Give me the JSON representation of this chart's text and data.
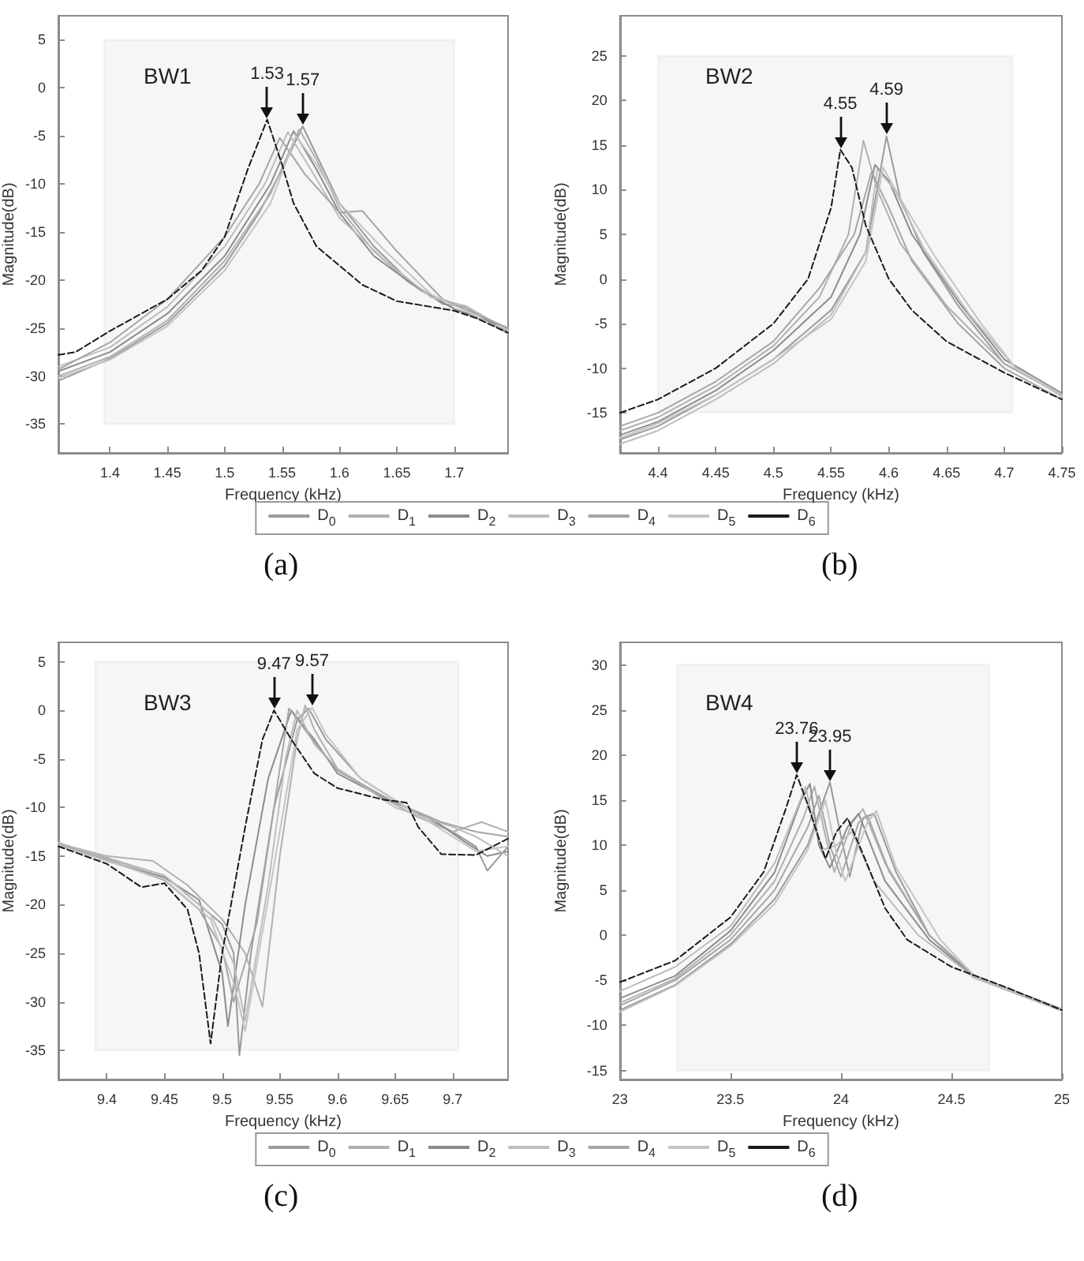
{
  "chart_data": [
    {
      "type": "line",
      "title": "BW1",
      "xlabel": "Frequency (kHz)",
      "ylabel": "Magnitude(dB)",
      "xlim": [
        1.355,
        1.747
      ],
      "ylim": [
        -38,
        7.5
      ],
      "xticks": [
        1.4,
        1.45,
        1.5,
        1.55,
        1.6,
        1.65,
        1.7
      ],
      "yticks": [
        -35,
        -30,
        -25,
        -20,
        -15,
        -10,
        -5,
        0,
        5
      ],
      "grid": false,
      "legend": "bottom",
      "marker": "none",
      "line_style": "solid",
      "bands": [
        {
          "axis": "x",
          "from": 1.395,
          "to": 1.7,
          "color": "#8c8c8c"
        }
      ],
      "annotations": [
        {
          "text": "1.53",
          "x": 1.537,
          "y": -3.3
        },
        {
          "text": "1.57",
          "x": 1.568,
          "y": -4
        },
        "(a)"
      ],
      "series": [
        {
          "name": "D$_{0}$",
          "color": "#9a9a9a",
          "x": [
            1.355,
            1.4,
            1.45,
            1.5,
            1.53,
            1.55,
            1.568,
            1.58,
            1.6,
            1.63,
            1.66,
            1.69,
            1.71,
            1.747
          ],
          "values": [
            -30.5,
            -28.2,
            -24.5,
            -18.5,
            -13,
            -8.5,
            -4,
            -7,
            -12,
            -16.5,
            -20,
            -22.5,
            -22.8,
            -25.5
          ]
        },
        {
          "name": "D$_{1}$",
          "color": "#b0b0b0",
          "x": [
            1.355,
            1.4,
            1.45,
            1.5,
            1.54,
            1.565,
            1.58,
            1.6,
            1.63,
            1.66,
            1.7,
            1.747
          ],
          "values": [
            -30,
            -28,
            -24.2,
            -18,
            -11,
            -4.3,
            -7.5,
            -12.5,
            -17,
            -20.2,
            -23,
            -25.3
          ]
        },
        {
          "name": "D$_{2}$",
          "color": "#8c8c8c",
          "x": [
            1.355,
            1.4,
            1.45,
            1.5,
            1.54,
            1.56,
            1.58,
            1.6,
            1.63,
            1.67,
            1.7,
            1.747
          ],
          "values": [
            -29.5,
            -27.5,
            -23.5,
            -17.5,
            -10,
            -4.5,
            -8.5,
            -13,
            -17.5,
            -21,
            -23,
            -25
          ]
        },
        {
          "name": "D$_{3}$",
          "color": "#bdbdbd",
          "x": [
            1.355,
            1.4,
            1.45,
            1.5,
            1.535,
            1.555,
            1.575,
            1.6,
            1.64,
            1.68,
            1.71,
            1.747
          ],
          "values": [
            -29,
            -27,
            -22.8,
            -16.5,
            -10,
            -4.6,
            -8.5,
            -13.5,
            -18,
            -21.8,
            -22.7,
            -25.2
          ]
        },
        {
          "name": "D$_{4}$",
          "color": "#a6a6a6",
          "x": [
            1.355,
            1.4,
            1.45,
            1.5,
            1.53,
            1.548,
            1.57,
            1.6,
            1.62,
            1.65,
            1.69,
            1.747
          ],
          "values": [
            -29.3,
            -26.5,
            -22,
            -15.5,
            -10,
            -5.2,
            -9,
            -13,
            -12.8,
            -17,
            -22,
            -25
          ]
        },
        {
          "name": "D$_{5}$",
          "color": "#c4c4c4",
          "x": [
            1.355,
            1.4,
            1.45,
            1.5,
            1.54,
            1.562,
            1.58,
            1.6,
            1.64,
            1.68,
            1.72,
            1.747
          ],
          "values": [
            -30.2,
            -28.3,
            -24.8,
            -19,
            -12,
            -5,
            -8,
            -12,
            -17,
            -21.5,
            -23.8,
            -25.6
          ]
        },
        {
          "name": "D$_{6}$",
          "color": "#1a1a1a",
          "line_style": "dashed",
          "x": [
            1.355,
            1.37,
            1.4,
            1.45,
            1.48,
            1.5,
            1.52,
            1.537,
            1.55,
            1.56,
            1.58,
            1.6,
            1.62,
            1.65,
            1.7,
            1.72,
            1.747
          ],
          "values": [
            -27.8,
            -27.5,
            -25.3,
            -22,
            -19,
            -15.5,
            -8.5,
            -3.3,
            -8,
            -12,
            -16.5,
            -18.5,
            -20.5,
            -22.2,
            -23.2,
            -24,
            -25.5
          ]
        }
      ]
    },
    {
      "type": "line",
      "title": "BW2",
      "xlabel": "Frequency (kHz)",
      "ylabel": "Magnitude(dB)",
      "xlim": [
        4.367,
        4.75
      ],
      "ylim": [
        -19.5,
        29.5
      ],
      "xticks": [
        4.4,
        4.45,
        4.5,
        4.55,
        4.6,
        4.65,
        4.7,
        4.75
      ],
      "yticks": [
        -15,
        -10,
        -5,
        0,
        5,
        10,
        15,
        20,
        25
      ],
      "grid": false,
      "marker": "none",
      "line_style": "solid",
      "bands": [
        {
          "axis": "x",
          "from": 4.4,
          "to": 4.707,
          "color": "#8c8c8c"
        }
      ],
      "annotations": [
        {
          "text": "4.55",
          "x": 4.558,
          "y": 14.5
        },
        {
          "text": "4.59",
          "x": 4.598,
          "y": 16
        },
        "(b)"
      ],
      "series": [
        {
          "color": "#9a9a9a",
          "x": [
            4.367,
            4.4,
            4.45,
            4.5,
            4.55,
            4.58,
            4.598,
            4.61,
            4.63,
            4.66,
            4.7,
            4.75
          ],
          "values": [
            -18,
            -16.5,
            -13,
            -9,
            -3.5,
            3,
            16,
            9,
            3,
            -3,
            -9.5,
            -13
          ]
        },
        {
          "color": "#b0b0b0",
          "x": [
            4.367,
            4.4,
            4.45,
            4.5,
            4.54,
            4.565,
            4.578,
            4.59,
            4.61,
            4.65,
            4.7,
            4.75
          ],
          "values": [
            -17,
            -15.5,
            -12,
            -7.5,
            -2,
            5,
            15.5,
            10,
            4,
            -3,
            -9.5,
            -13
          ]
        },
        {
          "color": "#8c8c8c",
          "x": [
            4.367,
            4.4,
            4.45,
            4.5,
            4.55,
            4.575,
            4.588,
            4.6,
            4.62,
            4.66,
            4.7,
            4.75
          ],
          "values": [
            -17.5,
            -16,
            -12.5,
            -8,
            -2,
            5,
            12.8,
            11,
            5,
            -2.5,
            -9,
            -12.8
          ]
        },
        {
          "color": "#bdbdbd",
          "x": [
            4.367,
            4.4,
            4.45,
            4.5,
            4.55,
            4.58,
            4.59,
            4.605,
            4.63,
            4.67,
            4.71,
            4.75
          ],
          "values": [
            -18.5,
            -17,
            -13.5,
            -9.5,
            -4,
            3,
            12.3,
            10,
            3.5,
            -4,
            -10,
            -13.2
          ]
        },
        {
          "color": "#a6a6a6",
          "x": [
            4.367,
            4.4,
            4.45,
            4.5,
            4.54,
            4.57,
            4.585,
            4.6,
            4.62,
            4.66,
            4.7,
            4.75
          ],
          "values": [
            -16.5,
            -15,
            -11.5,
            -7,
            -1,
            5,
            12,
            8,
            2,
            -5,
            -10,
            -13.5
          ]
        },
        {
          "color": "#c4c4c4",
          "x": [
            4.367,
            4.4,
            4.45,
            4.5,
            4.55,
            4.58,
            4.595,
            4.61,
            4.64,
            4.68,
            4.71,
            4.75
          ],
          "values": [
            -17.8,
            -16.2,
            -13,
            -9,
            -4.5,
            2,
            12.5,
            9,
            2.5,
            -5,
            -10,
            -13
          ]
        },
        {
          "color": "#1a1a1a",
          "line_style": "dashed",
          "x": [
            4.367,
            4.4,
            4.45,
            4.5,
            4.53,
            4.55,
            4.558,
            4.568,
            4.58,
            4.6,
            4.62,
            4.65,
            4.7,
            4.75
          ],
          "values": [
            -15,
            -13.5,
            -10,
            -5,
            0,
            8,
            14.5,
            12.5,
            6,
            0,
            -3.5,
            -7,
            -10.5,
            -13.5
          ]
        }
      ]
    },
    {
      "type": "line",
      "title": "BW3",
      "xlabel": "Frequency (kHz)",
      "ylabel": "Magnitude(dB)",
      "xlim": [
        9.358,
        9.748
      ],
      "ylim": [
        -38,
        7
      ],
      "xticks": [
        9.4,
        9.45,
        9.5,
        9.55,
        9.6,
        9.65,
        9.7
      ],
      "yticks": [
        -35,
        -30,
        -25,
        -20,
        -15,
        -10,
        -5,
        0,
        5
      ],
      "grid": false,
      "legend": "bottom",
      "marker": "none",
      "line_style": "solid",
      "bands": [
        {
          "axis": "x",
          "from": 9.39,
          "to": 9.705,
          "color": "#8c8c8c"
        }
      ],
      "annotations": [
        {
          "text": "9.47",
          "x": 9.545,
          "y": 0
        },
        {
          "text": "9.57",
          "x": 9.578,
          "y": 0.3
        },
        "(c)"
      ],
      "series": [
        {
          "name": "D$_{0}$",
          "color": "#9a9a9a",
          "x": [
            9.358,
            9.4,
            9.45,
            9.48,
            9.5,
            9.51,
            9.515,
            9.525,
            9.545,
            9.565,
            9.575,
            9.59,
            9.62,
            9.66,
            9.7,
            9.72,
            9.73,
            9.748
          ],
          "values": [
            -13.8,
            -15.2,
            -17,
            -20,
            -22,
            -25,
            -35.5,
            -25,
            -10,
            -1,
            0.2,
            -3,
            -7,
            -10,
            -12.5,
            -14,
            -16.5,
            -14
          ]
        },
        {
          "name": "D$_{1}$",
          "color": "#b0b0b0",
          "x": [
            9.358,
            9.4,
            9.44,
            9.47,
            9.5,
            9.52,
            9.535,
            9.55,
            9.565,
            9.572,
            9.58,
            9.6,
            9.64,
            9.67,
            9.7,
            9.725,
            9.748
          ],
          "values": [
            -13.7,
            -15,
            -15.5,
            -18,
            -21.5,
            -25,
            -30.5,
            -15,
            -3,
            0.5,
            -2,
            -6,
            -9,
            -11,
            -12.5,
            -11.5,
            -12.5
          ]
        },
        {
          "name": "D$_{2}$",
          "color": "#8c8c8c",
          "x": [
            9.358,
            9.4,
            9.45,
            9.48,
            9.5,
            9.505,
            9.52,
            9.54,
            9.56,
            9.58,
            9.6,
            9.64,
            9.68,
            9.71,
            9.73,
            9.748
          ],
          "values": [
            -13.9,
            -15.5,
            -17.2,
            -19.5,
            -27,
            -32.5,
            -20,
            -7,
            0,
            -3,
            -6.5,
            -9,
            -11,
            -13.5,
            -15,
            -14.5
          ]
        },
        {
          "name": "D$_{3}$",
          "color": "#bdbdbd",
          "x": [
            9.358,
            9.4,
            9.45,
            9.49,
            9.51,
            9.52,
            9.54,
            9.555,
            9.565,
            9.58,
            9.6,
            9.65,
            9.7,
            9.72,
            9.748
          ],
          "values": [
            -13.6,
            -15.3,
            -17,
            -21,
            -26,
            -32,
            -18,
            -5,
            0,
            -3.5,
            -6,
            -10,
            -12,
            -13,
            -15
          ]
        },
        {
          "name": "D$_{4}$",
          "color": "#a6a6a6",
          "x": [
            9.358,
            9.4,
            9.45,
            9.48,
            9.5,
            9.51,
            9.53,
            9.55,
            9.558,
            9.575,
            9.6,
            9.65,
            9.69,
            9.72,
            9.748
          ],
          "values": [
            -13.8,
            -15.4,
            -17.5,
            -20.5,
            -24.5,
            -30,
            -22,
            -6,
            0.2,
            -2.5,
            -6.2,
            -9.5,
            -11.5,
            -12.5,
            -13
          ]
        },
        {
          "name": "D$_{5}$",
          "color": "#c4c4c4",
          "x": [
            9.358,
            9.4,
            9.45,
            9.49,
            9.51,
            9.52,
            9.545,
            9.565,
            9.578,
            9.59,
            9.62,
            9.66,
            9.7,
            9.72,
            9.748
          ],
          "values": [
            -13.9,
            -15.5,
            -17.4,
            -21.5,
            -28,
            -33,
            -16,
            -2,
            0.3,
            -2.5,
            -7,
            -10,
            -13,
            -14.5,
            -14
          ]
        },
        {
          "name": "D$_{6}$",
          "color": "#1a1a1a",
          "line_style": "dashed",
          "x": [
            9.358,
            9.4,
            9.43,
            9.45,
            9.47,
            9.48,
            9.49,
            9.5,
            9.52,
            9.535,
            9.545,
            9.56,
            9.58,
            9.6,
            9.64,
            9.66,
            9.67,
            9.69,
            9.72,
            9.748
          ],
          "values": [
            -14,
            -15.8,
            -18.2,
            -17.8,
            -20.5,
            -25,
            -34.3,
            -25,
            -12,
            -3,
            0,
            -3,
            -6.5,
            -8,
            -9.2,
            -9.5,
            -12,
            -14.8,
            -14.9,
            -13.2
          ]
        }
      ]
    },
    {
      "type": "line",
      "title": "BW4",
      "xlabel": "Frequency (kHz)",
      "ylabel": "Magnitude(dB)",
      "xlim": [
        23,
        25
      ],
      "ylim": [
        -16,
        32.5
      ],
      "xticks": [
        23,
        23.5,
        24,
        24.5,
        25
      ],
      "yticks": [
        -15,
        -10,
        -5,
        0,
        5,
        10,
        15,
        20,
        25,
        30
      ],
      "grid": false,
      "marker": "none",
      "line_style": "solid",
      "bands": [
        {
          "axis": "x",
          "from": 23.26,
          "to": 24.67,
          "color": "#8c8c8c"
        }
      ],
      "annotations": [
        {
          "text": "23.76",
          "x": 23.8,
          "y": 17.8
        },
        {
          "text": "23.95",
          "x": 23.95,
          "y": 17
        },
        "(d)"
      ],
      "series": [
        {
          "color": "#9a9a9a",
          "x": [
            23,
            23.25,
            23.5,
            23.7,
            23.85,
            23.95,
            24.0,
            24.04,
            24.1,
            24.15,
            24.25,
            24.4,
            24.6,
            25
          ],
          "values": [
            -8.3,
            -5.5,
            -1,
            4,
            10,
            17,
            11,
            6.5,
            13,
            13.5,
            7,
            0,
            -4.5,
            -8.3
          ]
        },
        {
          "color": "#b0b0b0",
          "x": [
            23,
            23.25,
            23.5,
            23.7,
            23.83,
            23.88,
            23.93,
            23.97,
            24.05,
            24.1,
            24.2,
            24.4,
            24.6,
            25
          ],
          "values": [
            -7.5,
            -4.8,
            0,
            6,
            13,
            16.5,
            11,
            7,
            12.5,
            14,
            8,
            0,
            -4.7,
            -8.4
          ]
        },
        {
          "color": "#8c8c8c",
          "x": [
            23,
            23.25,
            23.5,
            23.7,
            23.82,
            23.86,
            23.9,
            23.95,
            24.03,
            24.08,
            24.2,
            24.4,
            24.6,
            25
          ],
          "values": [
            -7,
            -4.5,
            0.5,
            7,
            15,
            16.8,
            10,
            7.5,
            12,
            13.5,
            6,
            -0.5,
            -4.5,
            -8.2
          ]
        },
        {
          "color": "#bdbdbd",
          "x": [
            23,
            23.25,
            23.5,
            23.7,
            23.8,
            23.84,
            23.88,
            23.92,
            23.98,
            24.05,
            24.15,
            24.35,
            24.6,
            25
          ],
          "values": [
            -6.2,
            -3.5,
            1,
            8,
            14,
            16.5,
            12,
            9.5,
            10,
            11.5,
            6,
            0,
            -4.6,
            -8.3
          ]
        },
        {
          "color": "#a6a6a6",
          "x": [
            23,
            23.25,
            23.5,
            23.7,
            23.85,
            23.9,
            23.95,
            24.0,
            24.08,
            24.12,
            24.22,
            24.4,
            24.6,
            25
          ],
          "values": [
            -7.8,
            -5,
            -0.5,
            5,
            12,
            15.5,
            10,
            6.5,
            12.5,
            13.3,
            7,
            0,
            -4.4,
            -8.2
          ]
        },
        {
          "color": "#c4c4c4",
          "x": [
            23,
            23.25,
            23.5,
            23.7,
            23.85,
            23.93,
            23.98,
            24.02,
            24.12,
            24.16,
            24.25,
            24.45,
            24.6,
            25
          ],
          "values": [
            -8.5,
            -5.6,
            -1.2,
            3.5,
            9.5,
            15,
            9,
            6,
            12.5,
            13.8,
            7.5,
            -0.5,
            -4.4,
            -8.4
          ]
        },
        {
          "color": "#1a1a1a",
          "line_style": "dashed",
          "x": [
            23,
            23.25,
            23.5,
            23.65,
            23.75,
            23.8,
            23.85,
            23.93,
            23.98,
            24.03,
            24.1,
            24.2,
            24.3,
            24.5,
            24.75,
            25
          ],
          "values": [
            -5.2,
            -2.8,
            2,
            7,
            14,
            17.8,
            14.5,
            8.5,
            11.5,
            13,
            9,
            3,
            -0.5,
            -3.5,
            -5.8,
            -8.3
          ]
        }
      ]
    }
  ]
}
